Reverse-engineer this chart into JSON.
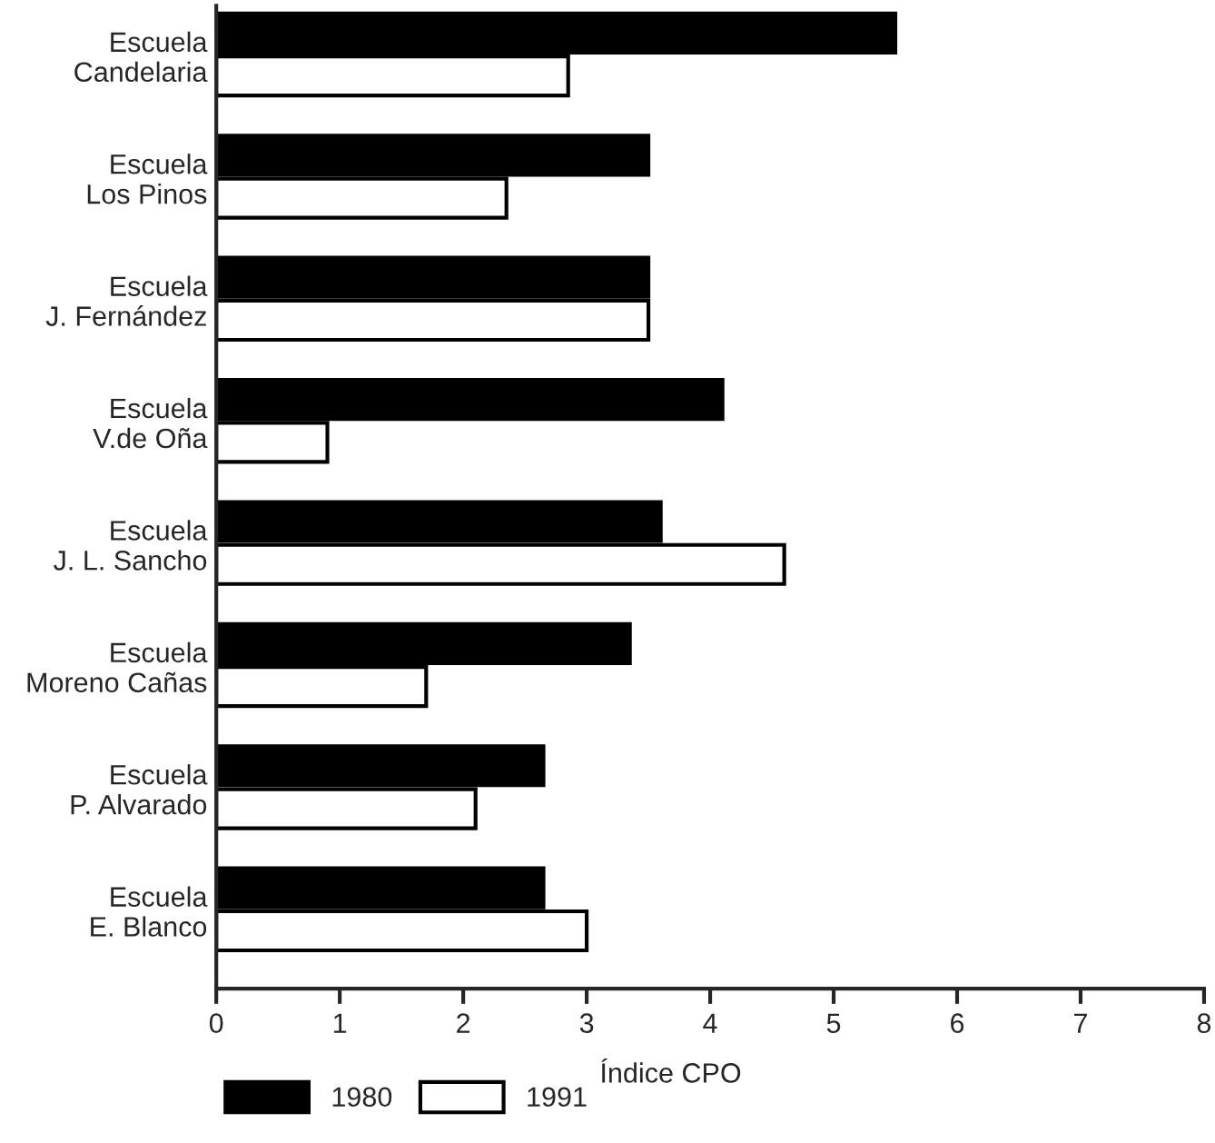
{
  "chart_data": {
    "type": "bar",
    "orientation": "horizontal",
    "xlabel": "Índice CPO",
    "categories": [
      "Escuela\nCandelaria",
      "Escuela\nLos Pinos",
      "Escuela\nJ. Fernández",
      "Escuela\nV.de Oña",
      "Escuela\nJ. L. Sancho",
      "Escuela\nMoreno Cañas",
      "Escuela\nP. Alvarado",
      "Escuela\nE. Blanco"
    ],
    "series": [
      {
        "name": "1980",
        "color": "#000000",
        "values": [
          5.5,
          3.5,
          3.5,
          4.1,
          3.6,
          3.35,
          2.65,
          2.65
        ]
      },
      {
        "name": "1991",
        "color": "#ffffff",
        "values": [
          2.85,
          2.35,
          3.5,
          0.9,
          4.6,
          1.7,
          2.1,
          3.0
        ]
      }
    ],
    "xlim": [
      0,
      8
    ],
    "xticks": [
      0,
      1,
      2,
      3,
      4,
      5,
      6,
      7,
      8
    ],
    "grid": false,
    "legend": "bottom left"
  }
}
